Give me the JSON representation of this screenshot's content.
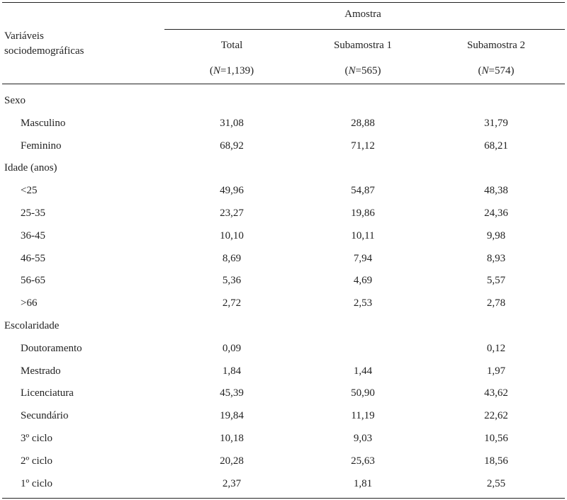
{
  "header": {
    "group_label": "Amostra",
    "row_header": [
      "Variáveis",
      "sociodemográficas"
    ],
    "columns": [
      {
        "label": "Total",
        "n_prefix": "(",
        "n_var": "N",
        "n_value": "=1,139)"
      },
      {
        "label": "Subamostra 1",
        "n_prefix": "(",
        "n_var": "N",
        "n_value": "=565)"
      },
      {
        "label": "Subamostra 2",
        "n_prefix": "(",
        "n_var": "N",
        "n_value": "=574)"
      }
    ]
  },
  "rows": [
    {
      "label": "Sexo",
      "section": true,
      "values": [
        "",
        "",
        ""
      ]
    },
    {
      "label": "Masculino",
      "values": [
        "31,08",
        "28,88",
        "31,79"
      ]
    },
    {
      "label": "Feminino",
      "values": [
        "68,92",
        "71,12",
        "68,21"
      ]
    },
    {
      "label": "Idade (anos)",
      "section": true,
      "values": [
        "",
        "",
        ""
      ]
    },
    {
      "label": "<25",
      "values": [
        "49,96",
        "54,87",
        "48,38"
      ]
    },
    {
      "label": "25-35",
      "values": [
        "23,27",
        "19,86",
        "24,36"
      ]
    },
    {
      "label": "36-45",
      "values": [
        "10,10",
        "10,11",
        "9,98"
      ]
    },
    {
      "label": "46-55",
      "values": [
        "8,69",
        "7,94",
        "8,93"
      ]
    },
    {
      "label": "56-65",
      "values": [
        "5,36",
        "4,69",
        "5,57"
      ]
    },
    {
      "label": ">66",
      "values": [
        "2,72",
        "2,53",
        "2,78"
      ]
    },
    {
      "label": "Escolaridade",
      "section": true,
      "values": [
        "",
        "",
        ""
      ]
    },
    {
      "label": "Doutoramento",
      "values": [
        "0,09",
        "",
        "0,12"
      ]
    },
    {
      "label": "Mestrado",
      "values": [
        "1,84",
        "1,44",
        "1,97"
      ]
    },
    {
      "label": "Licenciatura",
      "values": [
        "45,39",
        "50,90",
        "43,62"
      ]
    },
    {
      "label": "Secundário",
      "values": [
        "19,84",
        "11,19",
        "22,62"
      ]
    },
    {
      "label": "3º ciclo",
      "values": [
        "10,18",
        "9,03",
        "10,56"
      ]
    },
    {
      "label": "2º ciclo",
      "values": [
        "20,28",
        "25,63",
        "18,56"
      ]
    },
    {
      "label": "1º ciclo",
      "values": [
        "2,37",
        "1,81",
        "2,55"
      ]
    }
  ]
}
